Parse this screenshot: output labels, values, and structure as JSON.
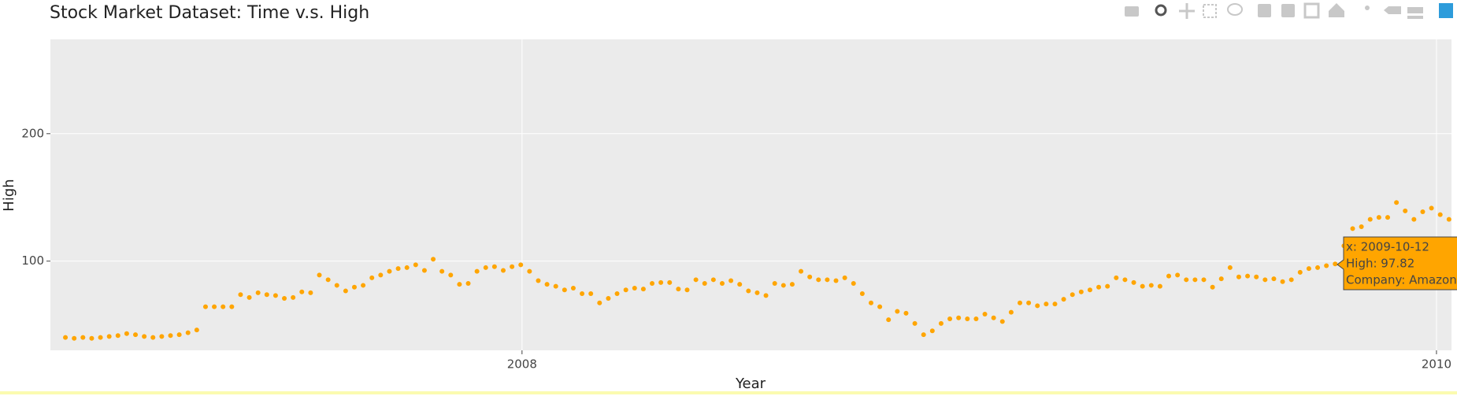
{
  "chart_data": {
    "type": "scatter",
    "title": "Stock Market Dataset: Time v.s. High",
    "x_label": "Year",
    "y_label": "High",
    "series": [
      {
        "name": "Amazon",
        "color": "#FFA500",
        "x": [
          "2007-01-01",
          "2007-01-08",
          "2007-01-15",
          "2007-01-22",
          "2007-01-29",
          "2007-02-05",
          "2007-02-12",
          "2007-02-19",
          "2007-02-26",
          "2007-03-05",
          "2007-03-12",
          "2007-03-19",
          "2007-03-26",
          "2007-04-02",
          "2007-04-09",
          "2007-04-16",
          "2007-04-23",
          "2007-04-30",
          "2007-05-07",
          "2007-05-14",
          "2007-05-21",
          "2007-05-28",
          "2007-06-04",
          "2007-06-11",
          "2007-06-18",
          "2007-06-25",
          "2007-07-02",
          "2007-07-09",
          "2007-07-16",
          "2007-07-23",
          "2007-07-30",
          "2007-08-06",
          "2007-08-13",
          "2007-08-20",
          "2007-08-27",
          "2007-09-03",
          "2007-09-10",
          "2007-09-17",
          "2007-09-24",
          "2007-10-01",
          "2007-10-08",
          "2007-10-15",
          "2007-10-22",
          "2007-10-29",
          "2007-11-05",
          "2007-11-12",
          "2007-11-19",
          "2007-11-26",
          "2007-12-03",
          "2007-12-10",
          "2007-12-17",
          "2007-12-24",
          "2007-12-31",
          "2008-01-07",
          "2008-01-14",
          "2008-01-21",
          "2008-01-28",
          "2008-02-04",
          "2008-02-11",
          "2008-02-18",
          "2008-02-25",
          "2008-03-03",
          "2008-03-10",
          "2008-03-17",
          "2008-03-24",
          "2008-03-31",
          "2008-04-07",
          "2008-04-14",
          "2008-04-21",
          "2008-04-28",
          "2008-05-05",
          "2008-05-12",
          "2008-05-19",
          "2008-05-26",
          "2008-06-02",
          "2008-06-09",
          "2008-06-16",
          "2008-06-23",
          "2008-06-30",
          "2008-07-07",
          "2008-07-14",
          "2008-07-21",
          "2008-07-28",
          "2008-08-04",
          "2008-08-11",
          "2008-08-18",
          "2008-08-25",
          "2008-09-01",
          "2008-09-08",
          "2008-09-15",
          "2008-09-22",
          "2008-09-29",
          "2008-10-06",
          "2008-10-13",
          "2008-10-20",
          "2008-10-27",
          "2008-11-03",
          "2008-11-10",
          "2008-11-17",
          "2008-11-24",
          "2008-12-01",
          "2008-12-08",
          "2008-12-15",
          "2008-12-22",
          "2008-12-29",
          "2009-01-05",
          "2009-01-12",
          "2009-01-19",
          "2009-01-26",
          "2009-02-02",
          "2009-02-09",
          "2009-02-16",
          "2009-02-23",
          "2009-03-02",
          "2009-03-09",
          "2009-03-16",
          "2009-03-23",
          "2009-03-30",
          "2009-04-06",
          "2009-04-13",
          "2009-04-20",
          "2009-04-27",
          "2009-05-04",
          "2009-05-11",
          "2009-05-18",
          "2009-05-25",
          "2009-06-01",
          "2009-06-08",
          "2009-06-15",
          "2009-06-22",
          "2009-06-29",
          "2009-07-06",
          "2009-07-13",
          "2009-07-20",
          "2009-07-27",
          "2009-08-03",
          "2009-08-10",
          "2009-08-17",
          "2009-08-24",
          "2009-08-31",
          "2009-09-07",
          "2009-09-14",
          "2009-09-21",
          "2009-09-28",
          "2009-10-05",
          "2009-10-12",
          "2009-10-19",
          "2009-10-26",
          "2009-11-02",
          "2009-11-09",
          "2009-11-16",
          "2009-11-23",
          "2009-11-30",
          "2009-12-07",
          "2009-12-14",
          "2009-12-21",
          "2009-12-28",
          "2010-01-04",
          "2010-01-11"
        ],
        "values": [
          40.1,
          39.4,
          40.1,
          39.4,
          40.1,
          40.9,
          41.6,
          43.1,
          42.3,
          40.9,
          40.1,
          40.9,
          41.6,
          42.3,
          43.8,
          46.0,
          64.2,
          64.2,
          64.2,
          64.2,
          73.7,
          71.5,
          75.2,
          73.7,
          73.0,
          70.8,
          71.5,
          75.9,
          75.2,
          89.1,
          85.4,
          81.0,
          76.6,
          79.6,
          81.0,
          86.9,
          89.1,
          92.0,
          94.2,
          94.9,
          97.1,
          92.7,
          101.5,
          92.0,
          89.1,
          81.8,
          82.5,
          92.0,
          94.9,
          95.6,
          92.7,
          95.6,
          97.1,
          92.0,
          84.7,
          81.8,
          80.3,
          77.4,
          78.8,
          74.5,
          74.5,
          67.2,
          70.8,
          74.5,
          77.4,
          78.8,
          78.1,
          82.5,
          83.2,
          83.2,
          78.1,
          77.4,
          85.4,
          82.5,
          85.4,
          82.5,
          84.7,
          81.8,
          76.6,
          75.2,
          73.0,
          82.5,
          81.0,
          81.8,
          92.0,
          87.6,
          85.4,
          85.4,
          84.7,
          86.9,
          82.5,
          74.5,
          67.2,
          64.2,
          54.0,
          60.6,
          59.1,
          51.1,
          42.3,
          45.3,
          51.1,
          54.7,
          55.5,
          54.7,
          54.7,
          58.4,
          55.5,
          52.6,
          59.9,
          67.2,
          67.2,
          65.0,
          66.4,
          66.4,
          70.1,
          73.7,
          75.9,
          77.4,
          79.6,
          80.3,
          86.9,
          85.4,
          83.2,
          80.3,
          81.0,
          80.3,
          88.3,
          89.1,
          85.4,
          85.4,
          85.4,
          79.6,
          86.1,
          94.9,
          87.6,
          88.3,
          87.6,
          85.4,
          86.1,
          83.9,
          85.4,
          91.2,
          94.2,
          94.9,
          96.4,
          97.82,
          112,
          125.5,
          127,
          132.8,
          134.3,
          134.3,
          146,
          139.4,
          132.8,
          138.7,
          141.6,
          136.5,
          132.8
        ]
      }
    ],
    "xlim": [
      "2006-12-20",
      "2010-01-13"
    ],
    "xticks": [
      {
        "value": "2008-01-01",
        "label": "2008"
      },
      {
        "value": "2010-01-01",
        "label": "2010"
      }
    ],
    "ylim": [
      30,
      274
    ],
    "yticks": [
      100,
      200
    ],
    "grid": true,
    "tooltip": [
      "x: 2009-10-12",
      "High:  97.82",
      "Company: Amazon"
    ]
  }
}
